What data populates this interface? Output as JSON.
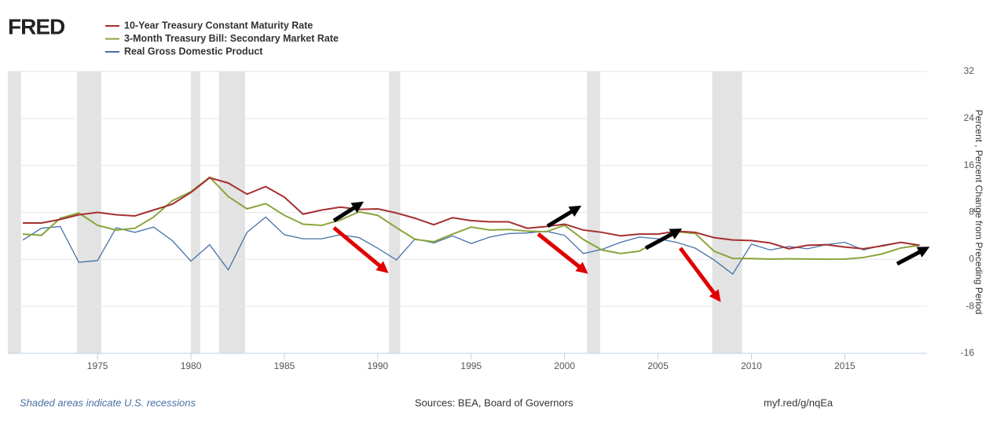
{
  "logo": "FRED",
  "chart_data": {
    "type": "line",
    "x": [
      1971,
      1972,
      1973,
      1974,
      1975,
      1976,
      1977,
      1978,
      1979,
      1980,
      1981,
      1982,
      1983,
      1984,
      1985,
      1986,
      1987,
      1988,
      1989,
      1990,
      1991,
      1992,
      1993,
      1994,
      1995,
      1996,
      1997,
      1998,
      1999,
      2000,
      2001,
      2002,
      2003,
      2004,
      2005,
      2006,
      2007,
      2008,
      2009,
      2010,
      2011,
      2012,
      2013,
      2014,
      2015,
      2016,
      2017,
      2018,
      2019
    ],
    "series": [
      {
        "name": "10-Year Treasury Constant Maturity Rate",
        "color": "#a52f2f",
        "values": [
          6.2,
          6.2,
          6.8,
          7.6,
          8.0,
          7.6,
          7.4,
          8.4,
          9.4,
          11.4,
          13.9,
          13.0,
          11.1,
          12.4,
          10.6,
          7.7,
          8.4,
          8.9,
          8.5,
          8.6,
          7.9,
          7.0,
          5.9,
          7.1,
          6.6,
          6.4,
          6.4,
          5.3,
          5.6,
          6.0,
          5.0,
          4.6,
          4.0,
          4.3,
          4.3,
          4.8,
          4.6,
          3.7,
          3.3,
          3.2,
          2.8,
          1.8,
          2.4,
          2.5,
          2.1,
          1.8,
          2.3,
          2.9,
          2.4
        ]
      },
      {
        "name": "3-Month Treasury Bill: Secondary Market Rate",
        "color": "#8aa53c",
        "values": [
          4.3,
          4.1,
          7.0,
          7.9,
          5.8,
          5.0,
          5.3,
          7.2,
          10.0,
          11.5,
          14.0,
          10.7,
          8.6,
          9.5,
          7.5,
          6.0,
          5.8,
          6.7,
          8.1,
          7.5,
          5.4,
          3.4,
          3.0,
          4.3,
          5.5,
          5.0,
          5.1,
          4.8,
          4.7,
          5.8,
          3.4,
          1.6,
          1.0,
          1.4,
          3.2,
          4.7,
          4.4,
          1.4,
          0.15,
          0.14,
          0.05,
          0.09,
          0.06,
          0.03,
          0.05,
          0.32,
          0.93,
          1.94,
          2.4
        ]
      },
      {
        "name": "Real Gross Domestic Product",
        "color": "#4572a7",
        "values": [
          3.3,
          5.3,
          5.6,
          -0.5,
          -0.2,
          5.4,
          4.6,
          5.5,
          3.2,
          -0.3,
          2.5,
          -1.8,
          4.6,
          7.2,
          4.2,
          3.5,
          3.5,
          4.2,
          3.7,
          1.9,
          -0.1,
          3.5,
          2.8,
          4.0,
          2.7,
          3.8,
          4.4,
          4.5,
          4.8,
          4.1,
          1.0,
          1.7,
          2.9,
          3.8,
          3.5,
          2.9,
          1.9,
          -0.1,
          -2.5,
          2.6,
          1.6,
          2.2,
          1.8,
          2.5,
          2.9,
          1.6,
          2.4,
          2.9,
          2.3
        ]
      }
    ],
    "recessions": [
      [
        1970.2,
        1970.9
      ],
      [
        1973.9,
        1975.2
      ],
      [
        1980.0,
        1980.5
      ],
      [
        1981.5,
        1982.9
      ],
      [
        1990.6,
        1991.2
      ],
      [
        2001.2,
        2001.9
      ],
      [
        2007.9,
        2009.5
      ]
    ],
    "xlim": [
      1970.2,
      2019.4
    ],
    "xticks": [
      1975,
      1980,
      1985,
      1990,
      1995,
      2000,
      2005,
      2010,
      2015
    ],
    "ylim": [
      -16,
      32
    ],
    "yticks": [
      32,
      24,
      16,
      8,
      0,
      -8,
      -16
    ],
    "grid": true,
    "ylabel": "Percent , Percent Change from Preceding Period",
    "note": "Shaded areas indicate U.S. recessions",
    "source": "Sources: BEA, Board of Governors",
    "link": "myf.red/g/nqEa"
  }
}
